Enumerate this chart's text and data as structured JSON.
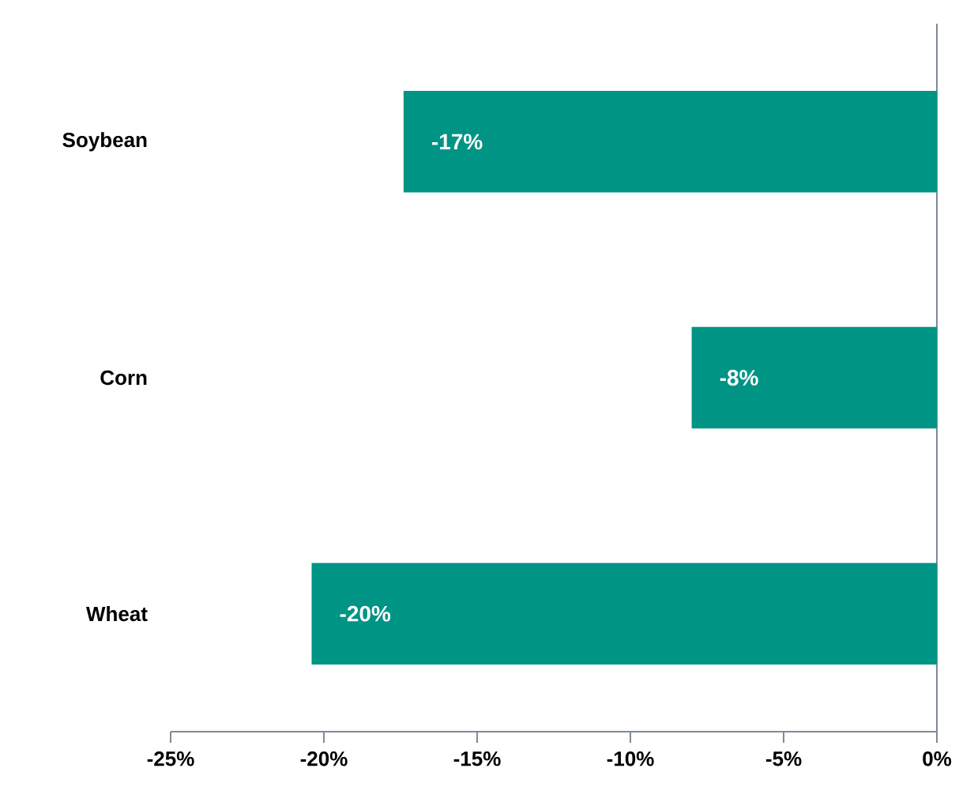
{
  "chart_data": {
    "type": "bar",
    "orientation": "horizontal",
    "categories": [
      "Soybean",
      "Corn",
      "Wheat"
    ],
    "values": [
      -17.4,
      -8.0,
      -20.4
    ],
    "value_labels": [
      "-17%",
      "-8%",
      "-20%"
    ],
    "color": "#009485",
    "xlim": [
      -25,
      0
    ],
    "xticks": [
      {
        "value": -25,
        "label": "-25%"
      },
      {
        "value": -20,
        "label": "-20%"
      },
      {
        "value": -15,
        "label": "-15%"
      },
      {
        "value": -10,
        "label": "-10%"
      },
      {
        "value": -5,
        "label": "-5%"
      },
      {
        "value": 0,
        "label": "0%"
      }
    ],
    "grid": false
  }
}
